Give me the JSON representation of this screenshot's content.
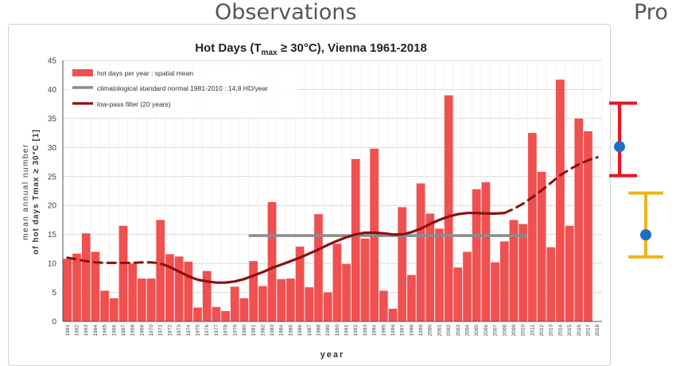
{
  "headings": {
    "observations": "Observations",
    "projections": "Pro"
  },
  "chart_data": {
    "type": "bar",
    "title_main": "Hot Days  (T",
    "title_sub": "max",
    "title_rest": " ≥ 30°C), Vienna 1961-2018",
    "xlabel": "year",
    "ylabel_line1": "mean annual number",
    "ylabel_line2": "of hot days  Tmax ≥ 30°C [1]",
    "ylim": [
      0,
      45
    ],
    "yticks": [
      0,
      5,
      10,
      15,
      20,
      25,
      30,
      35,
      40,
      45
    ],
    "grid": true,
    "legend_position": "top-left",
    "categories": [
      "1961",
      "1962",
      "1963",
      "1964",
      "1965",
      "1966",
      "1967",
      "1968",
      "1969",
      "1970",
      "1971",
      "1972",
      "1973",
      "1974",
      "1975",
      "1976",
      "1977",
      "1978",
      "1979",
      "1980",
      "1981",
      "1982",
      "1983",
      "1984",
      "1985",
      "1986",
      "1987",
      "1988",
      "1989",
      "1990",
      "1991",
      "1992",
      "1993",
      "1994",
      "1995",
      "1996",
      "1997",
      "1998",
      "1999",
      "2000",
      "2001",
      "2002",
      "2003",
      "2004",
      "2005",
      "2006",
      "2007",
      "2008",
      "2009",
      "2010",
      "2011",
      "2012",
      "2013",
      "2014",
      "2015",
      "2016",
      "2017",
      "2018"
    ],
    "series": [
      {
        "name": "hot days per year : spatial mean",
        "color": "#f05050",
        "values": [
          10.8,
          11.7,
          15.2,
          12.0,
          5.3,
          4.0,
          16.5,
          10.0,
          7.4,
          7.4,
          17.5,
          11.6,
          11.2,
          10.3,
          2.4,
          8.7,
          2.5,
          1.8,
          6.0,
          4.0,
          10.4,
          6.1,
          20.6,
          7.3,
          7.4,
          12.9,
          5.9,
          18.5,
          5.0,
          13.4,
          9.9,
          28.0,
          14.3,
          29.8,
          5.3,
          2.2,
          19.7,
          8.0,
          23.8,
          18.6,
          16.0,
          39.0,
          9.3,
          12.0,
          22.8,
          24.0,
          10.2,
          13.8,
          17.5,
          16.8,
          32.5,
          25.8,
          12.8,
          41.7,
          16.5,
          35.0,
          32.8,
          0
        ]
      },
      {
        "name": "climatological standard normal 1981-2010 : 14,8 HD/year",
        "color": "#8c8c8c",
        "x_start": "1981",
        "x_end": "2010",
        "value": 14.8
      },
      {
        "name": "low-pass filter (20 years)",
        "color": "#8b1010",
        "solid_points": [
          [
            "1971",
            10.0
          ],
          [
            "1972",
            9.4
          ],
          [
            "1973",
            8.6
          ],
          [
            "1974",
            7.8
          ],
          [
            "1975",
            7.2
          ],
          [
            "1976",
            6.9
          ],
          [
            "1977",
            6.7
          ],
          [
            "1978",
            6.7
          ],
          [
            "1979",
            6.9
          ],
          [
            "1980",
            7.3
          ],
          [
            "1981",
            7.9
          ],
          [
            "1982",
            8.5
          ],
          [
            "1983",
            9.2
          ],
          [
            "1984",
            9.8
          ],
          [
            "1985",
            10.4
          ],
          [
            "1986",
            11.0
          ],
          [
            "1987",
            11.7
          ],
          [
            "1988",
            12.4
          ],
          [
            "1989",
            13.2
          ],
          [
            "1990",
            13.9
          ],
          [
            "1991",
            14.5
          ],
          [
            "1992",
            15.0
          ],
          [
            "1993",
            15.3
          ],
          [
            "1994",
            15.3
          ],
          [
            "1995",
            15.2
          ],
          [
            "1996",
            15.0
          ],
          [
            "1997",
            15.0
          ],
          [
            "1998",
            15.4
          ],
          [
            "1999",
            16.0
          ],
          [
            "2000",
            16.8
          ],
          [
            "2001",
            17.5
          ],
          [
            "2002",
            18.1
          ],
          [
            "2003",
            18.5
          ],
          [
            "2004",
            18.7
          ],
          [
            "2005",
            18.7
          ],
          [
            "2006",
            18.6
          ],
          [
            "2007",
            18.6
          ],
          [
            "2008",
            18.7
          ]
        ],
        "dashed_start": [
          [
            "1961",
            11.0
          ],
          [
            "1962",
            10.7
          ],
          [
            "1963",
            10.4
          ],
          [
            "1964",
            10.2
          ],
          [
            "1965",
            10.1
          ],
          [
            "1966",
            10.1
          ],
          [
            "1967",
            10.1
          ],
          [
            "1968",
            10.1
          ],
          [
            "1969",
            10.2
          ],
          [
            "1970",
            10.2
          ],
          [
            "1971",
            10.0
          ]
        ],
        "dashed_end": [
          [
            "2008",
            18.7
          ],
          [
            "2009",
            19.4
          ],
          [
            "2010",
            20.3
          ],
          [
            "2011",
            21.4
          ],
          [
            "2012",
            22.6
          ],
          [
            "2013",
            23.9
          ],
          [
            "2014",
            25.2
          ],
          [
            "2015",
            26.2
          ],
          [
            "2016",
            27.1
          ],
          [
            "2017",
            27.8
          ],
          [
            "2018",
            28.3
          ]
        ]
      }
    ]
  },
  "projections": [
    {
      "color": "#e8141e",
      "low": 25.0,
      "high": 37.5,
      "mid": 30.0
    },
    {
      "color": "#f0b414",
      "low": 11.0,
      "high": 22.0,
      "mid": 14.8
    }
  ]
}
